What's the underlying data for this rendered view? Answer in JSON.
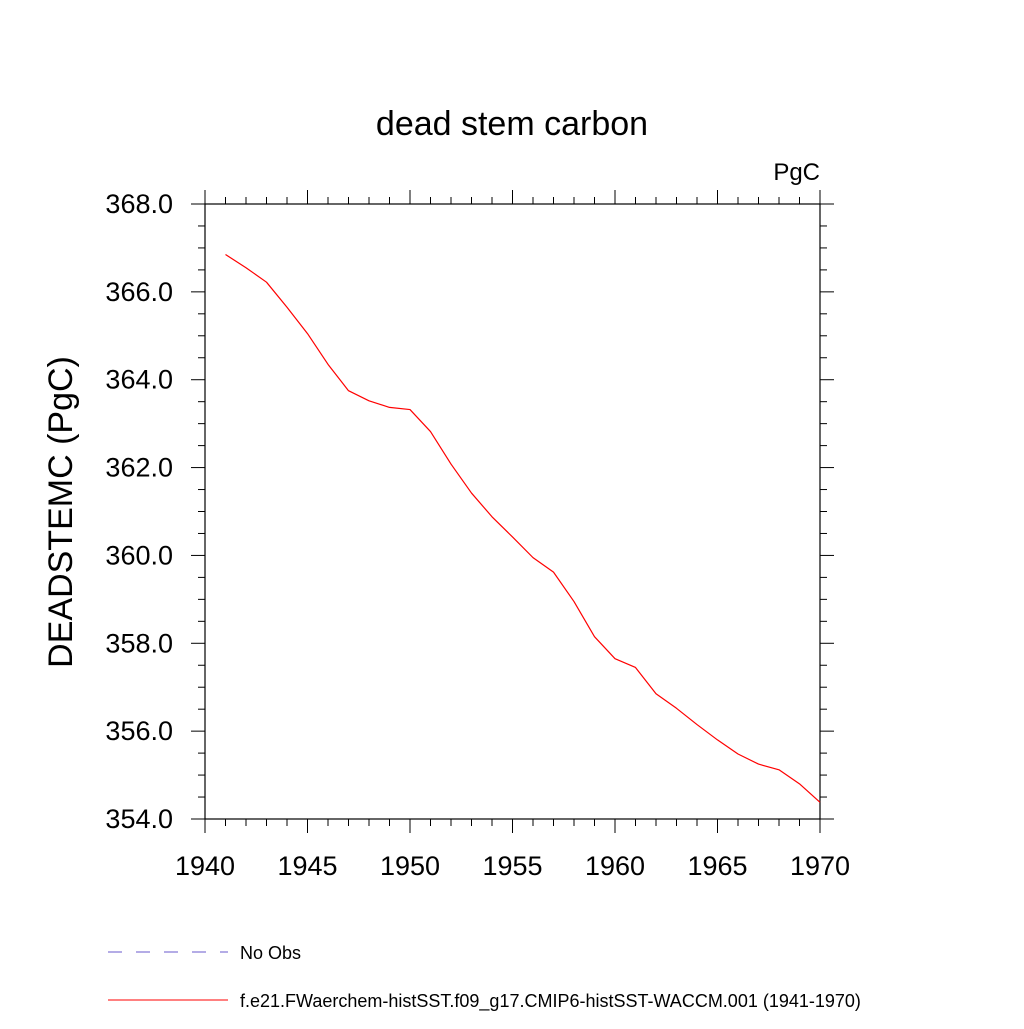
{
  "chart_data": {
    "type": "line",
    "title": "dead stem carbon",
    "units_label": "PgC",
    "ylabel": "DEADSTEMC  (PgC)",
    "xlabel": "",
    "xlim": [
      1940,
      1970
    ],
    "ylim": [
      354.0,
      368.0
    ],
    "x_ticks": [
      1940,
      1945,
      1950,
      1955,
      1960,
      1965,
      1970
    ],
    "x_tick_labels": [
      "1940",
      "1945",
      "1950",
      "1955",
      "1960",
      "1965",
      "1970"
    ],
    "y_ticks": [
      354.0,
      356.0,
      358.0,
      360.0,
      362.0,
      364.0,
      366.0,
      368.0
    ],
    "y_tick_labels": [
      "354.0",
      "356.0",
      "358.0",
      "360.0",
      "362.0",
      "364.0",
      "366.0",
      "368.0"
    ],
    "grid": false,
    "legend_position": "bottom-left",
    "series": [
      {
        "name": "f.e21.FWaerchem-histSST.f09_g17.CMIP6-histSST-WACCM.001 (1941-1970)",
        "color": "#ff0000",
        "style": "solid",
        "x": [
          1941,
          1942,
          1943,
          1944,
          1945,
          1946,
          1947,
          1948,
          1949,
          1950,
          1951,
          1952,
          1953,
          1954,
          1955,
          1956,
          1957,
          1958,
          1959,
          1960,
          1961,
          1962,
          1963,
          1964,
          1965,
          1966,
          1967,
          1968,
          1969,
          1970
        ],
        "values": [
          366.85,
          366.55,
          366.22,
          365.65,
          365.05,
          364.35,
          363.75,
          363.52,
          363.37,
          363.32,
          362.82,
          362.08,
          361.42,
          360.88,
          360.42,
          359.95,
          359.62,
          358.95,
          358.15,
          357.65,
          357.45,
          356.85,
          356.52,
          356.15,
          355.8,
          355.48,
          355.25,
          355.12,
          354.8,
          354.38
        ]
      }
    ],
    "legend": [
      {
        "label": "No Obs",
        "color": "#6a5acd",
        "style": "dashed"
      },
      {
        "label": "f.e21.FWaerchem-histSST.f09_g17.CMIP6-histSST-WACCM.001 (1941-1970)",
        "color": "#ff0000",
        "style": "solid"
      }
    ]
  }
}
